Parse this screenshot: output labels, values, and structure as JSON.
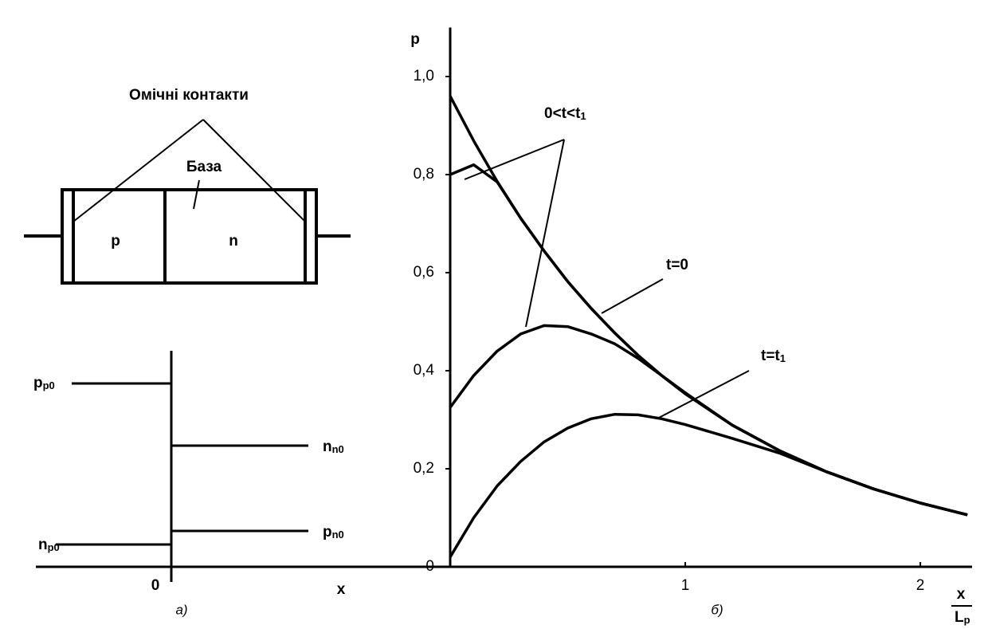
{
  "diagram": {
    "title": "Омічні контакти",
    "base_label": "База",
    "regions": [
      "p",
      "n"
    ],
    "levels": [
      {
        "symbol": "p",
        "sub": "p0"
      },
      {
        "symbol": "n",
        "sub": "n0"
      },
      {
        "symbol": "p",
        "sub": "n0"
      },
      {
        "symbol": "n",
        "sub": "p0"
      }
    ],
    "origin": "0",
    "x_label": "x",
    "caption": "а)"
  },
  "chart_data": {
    "type": "line",
    "y_label": "p",
    "x_label": {
      "numerator": "x",
      "denominator": "L",
      "denominator_sub": "p"
    },
    "caption": "б)",
    "x": [
      0,
      0.1,
      0.2,
      0.3,
      0.4,
      0.5,
      0.6,
      0.7,
      0.8,
      0.9,
      1.0,
      1.2,
      1.4,
      1.6,
      1.8,
      2.0,
      2.2
    ],
    "series": [
      {
        "color": "#000000",
        "values": [
          0.96,
          0.869,
          0.786,
          0.711,
          0.644,
          0.582,
          0.527,
          0.477,
          0.431,
          0.39,
          0.353,
          0.289,
          0.237,
          0.194,
          0.159,
          0.13,
          0.106
        ]
      },
      {
        "color": "#000000",
        "values": [
          0.8,
          0.82,
          0.785,
          0.711,
          0.644,
          0.582,
          0.527,
          0.477,
          0.431,
          0.39,
          0.353,
          0.289,
          0.237,
          0.194,
          0.159,
          0.13,
          0.106
        ]
      },
      {
        "color": "#000000",
        "values": [
          0.325,
          0.39,
          0.44,
          0.475,
          0.492,
          0.49,
          0.475,
          0.455,
          0.425,
          0.39,
          0.355,
          0.289,
          0.237,
          0.194,
          0.159,
          0.13,
          0.106
        ]
      },
      {
        "color": "#000000",
        "values": [
          0.02,
          0.1,
          0.165,
          0.215,
          0.255,
          0.283,
          0.302,
          0.311,
          0.31,
          0.302,
          0.29,
          0.262,
          0.232,
          0.194,
          0.159,
          0.13,
          0.106
        ]
      }
    ],
    "annotations": [
      {
        "text": "0<t<t",
        "sub": "1"
      },
      {
        "text": "t=0"
      },
      {
        "text": "t=t",
        "sub": "1"
      }
    ],
    "xlim": [
      0,
      2.22
    ],
    "ylim": [
      0,
      1.1
    ],
    "xticks": [
      1,
      2
    ],
    "yticks": [
      0,
      {
        "value": 0.2,
        "label": "0,2"
      },
      {
        "value": 0.4,
        "label": "0,4"
      },
      {
        "value": 0.6,
        "label": "0,6"
      },
      {
        "value": 0.8,
        "label": "0,8"
      },
      {
        "value": 1.0,
        "label": "1,0"
      }
    ]
  }
}
